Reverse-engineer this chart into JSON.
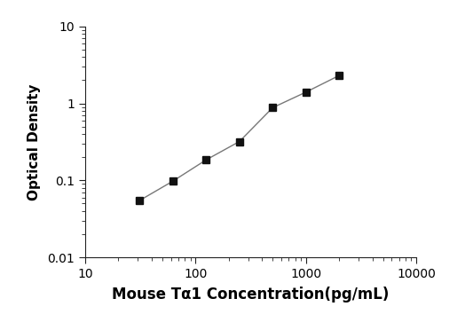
{
  "x_values": [
    31.25,
    62.5,
    125,
    250,
    500,
    1000,
    2000
  ],
  "y_values": [
    0.055,
    0.098,
    0.185,
    0.32,
    0.88,
    1.4,
    2.3
  ],
  "xlabel": "Mouse Tα1 Concentration(pg/mL)",
  "ylabel": "Optical Density",
  "xlim": [
    10,
    10000
  ],
  "ylim": [
    0.01,
    10
  ],
  "x_ticks": [
    10,
    100,
    1000,
    10000
  ],
  "x_tick_labels": [
    "10",
    "100",
    "1000",
    "10000"
  ],
  "y_ticks": [
    0.01,
    0.1,
    1,
    10
  ],
  "y_tick_labels": [
    "0.01",
    "0.1",
    "1",
    "10"
  ],
  "line_color": "#777777",
  "marker_color": "#111111",
  "marker_size": 6,
  "line_width": 1.0,
  "background_color": "#ffffff",
  "xlabel_fontsize": 12,
  "ylabel_fontsize": 11,
  "tick_fontsize": 10
}
